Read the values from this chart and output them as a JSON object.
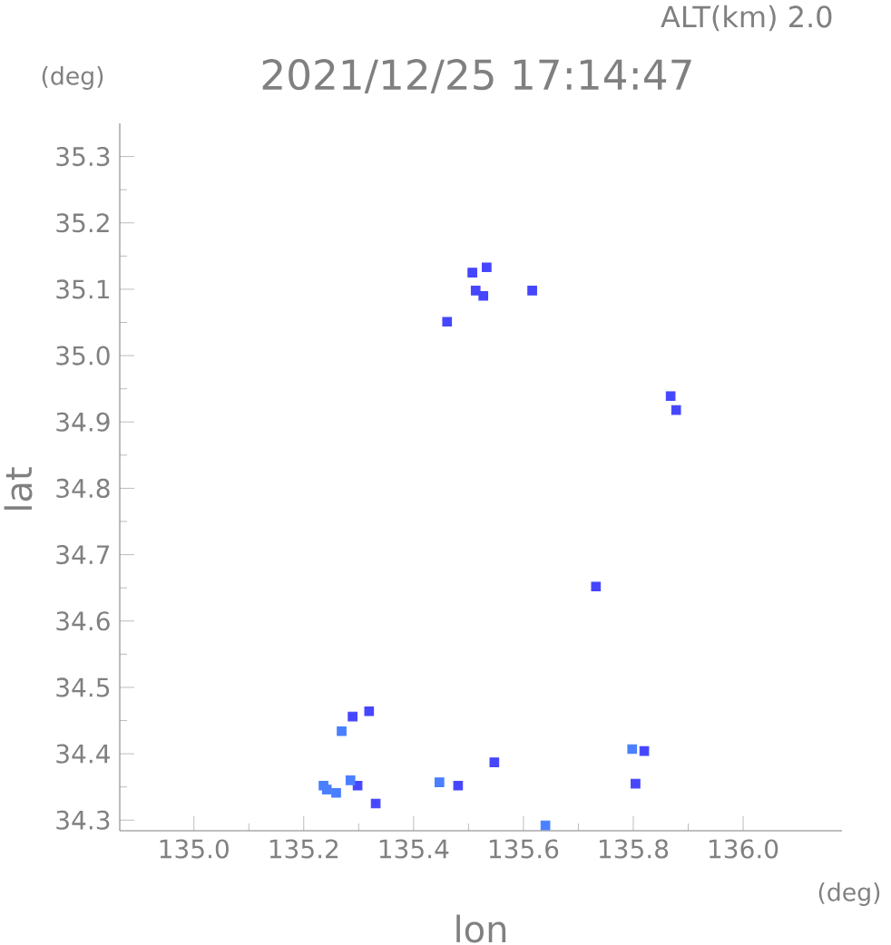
{
  "chart_data": {
    "type": "scatter",
    "title": "2021/12/25 17:14:47",
    "subtitle": "ALT(km) 2.0",
    "xlabel": "lon",
    "ylabel": "lat",
    "annotations": [
      "(deg)",
      "(deg)"
    ],
    "series": [
      {
        "color": "#4646ff",
        "x": [
          135.507,
          135.513,
          135.533,
          135.527,
          135.616,
          135.461,
          135.868,
          135.878,
          135.732,
          135.289,
          135.319,
          135.298,
          135.331,
          135.481,
          135.547,
          135.82,
          135.804
        ],
        "values": [
          35.125,
          35.098,
          35.133,
          35.09,
          35.098,
          35.051,
          34.939,
          34.918,
          34.652,
          34.456,
          34.464,
          34.352,
          34.325,
          34.352,
          34.387,
          34.404,
          34.355
        ]
      },
      {
        "color": "#4a80ff",
        "x": [
          135.269,
          135.242,
          135.236,
          135.259,
          135.285,
          135.447,
          135.64,
          135.798
        ],
        "values": [
          34.434,
          34.346,
          34.352,
          34.341,
          34.36,
          34.357,
          34.292,
          34.407
        ]
      }
    ],
    "xlim": [
      134.865,
      136.18
    ],
    "ylim": [
      34.284,
      35.35
    ],
    "xticks": [
      {
        "value": 135.0,
        "label": "135.0"
      },
      135.2,
      135.4,
      135.6,
      135.8,
      {
        "value": 136.0,
        "label": "136.0"
      }
    ],
    "yticks": [
      34.3,
      34.4,
      34.5,
      34.6,
      34.7,
      34.8,
      34.9,
      {
        "value": 35.0,
        "label": "35.0"
      },
      35.1,
      35.2,
      35.3
    ],
    "grid": false,
    "marker": "square"
  }
}
